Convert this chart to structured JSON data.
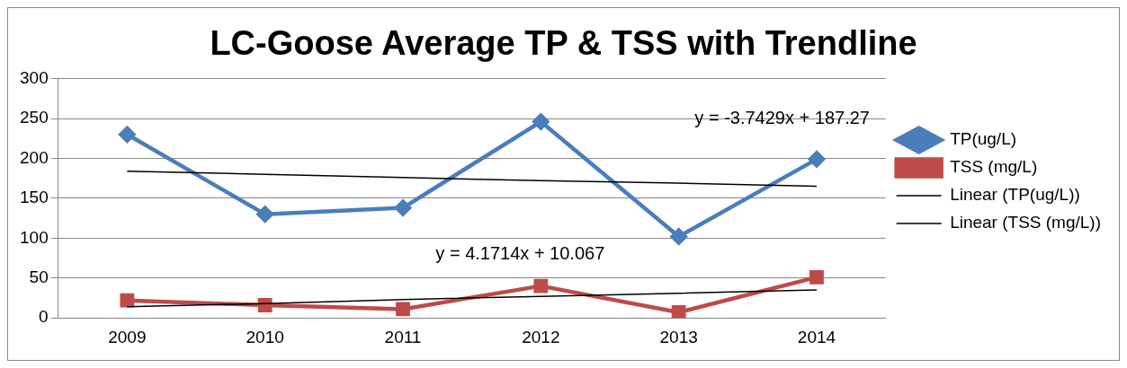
{
  "chart_data": {
    "type": "line",
    "title": "LC-Goose Average TP & TSS with Trendline",
    "categories": [
      "2009",
      "2010",
      "2011",
      "2012",
      "2013",
      "2014"
    ],
    "series": [
      {
        "name": "TP(ug/L)",
        "color": "#4a7ebb",
        "marker": "diamond",
        "values": [
          230,
          130,
          138,
          246,
          102,
          199
        ]
      },
      {
        "name": "TSS (mg/L)",
        "color": "#be4b48",
        "marker": "square",
        "values": [
          22,
          16,
          11,
          40,
          7,
          51
        ]
      },
      {
        "name": "Linear (TP(ug/L))",
        "color": "#000000",
        "marker": "none",
        "values": [
          184,
          180,
          176,
          172,
          169,
          165
        ]
      },
      {
        "name": "Linear (TSS (mg/L))",
        "color": "#000000",
        "marker": "none",
        "values": [
          14,
          18,
          23,
          27,
          31,
          35
        ]
      }
    ],
    "annotations": [
      "y = -3.7429x + 187.27",
      "y = 4.1714x + 10.067"
    ],
    "ylim": [
      0,
      300
    ],
    "yticks": [
      0,
      50,
      100,
      150,
      200,
      250,
      300
    ],
    "grid": "y",
    "legend": "right"
  }
}
